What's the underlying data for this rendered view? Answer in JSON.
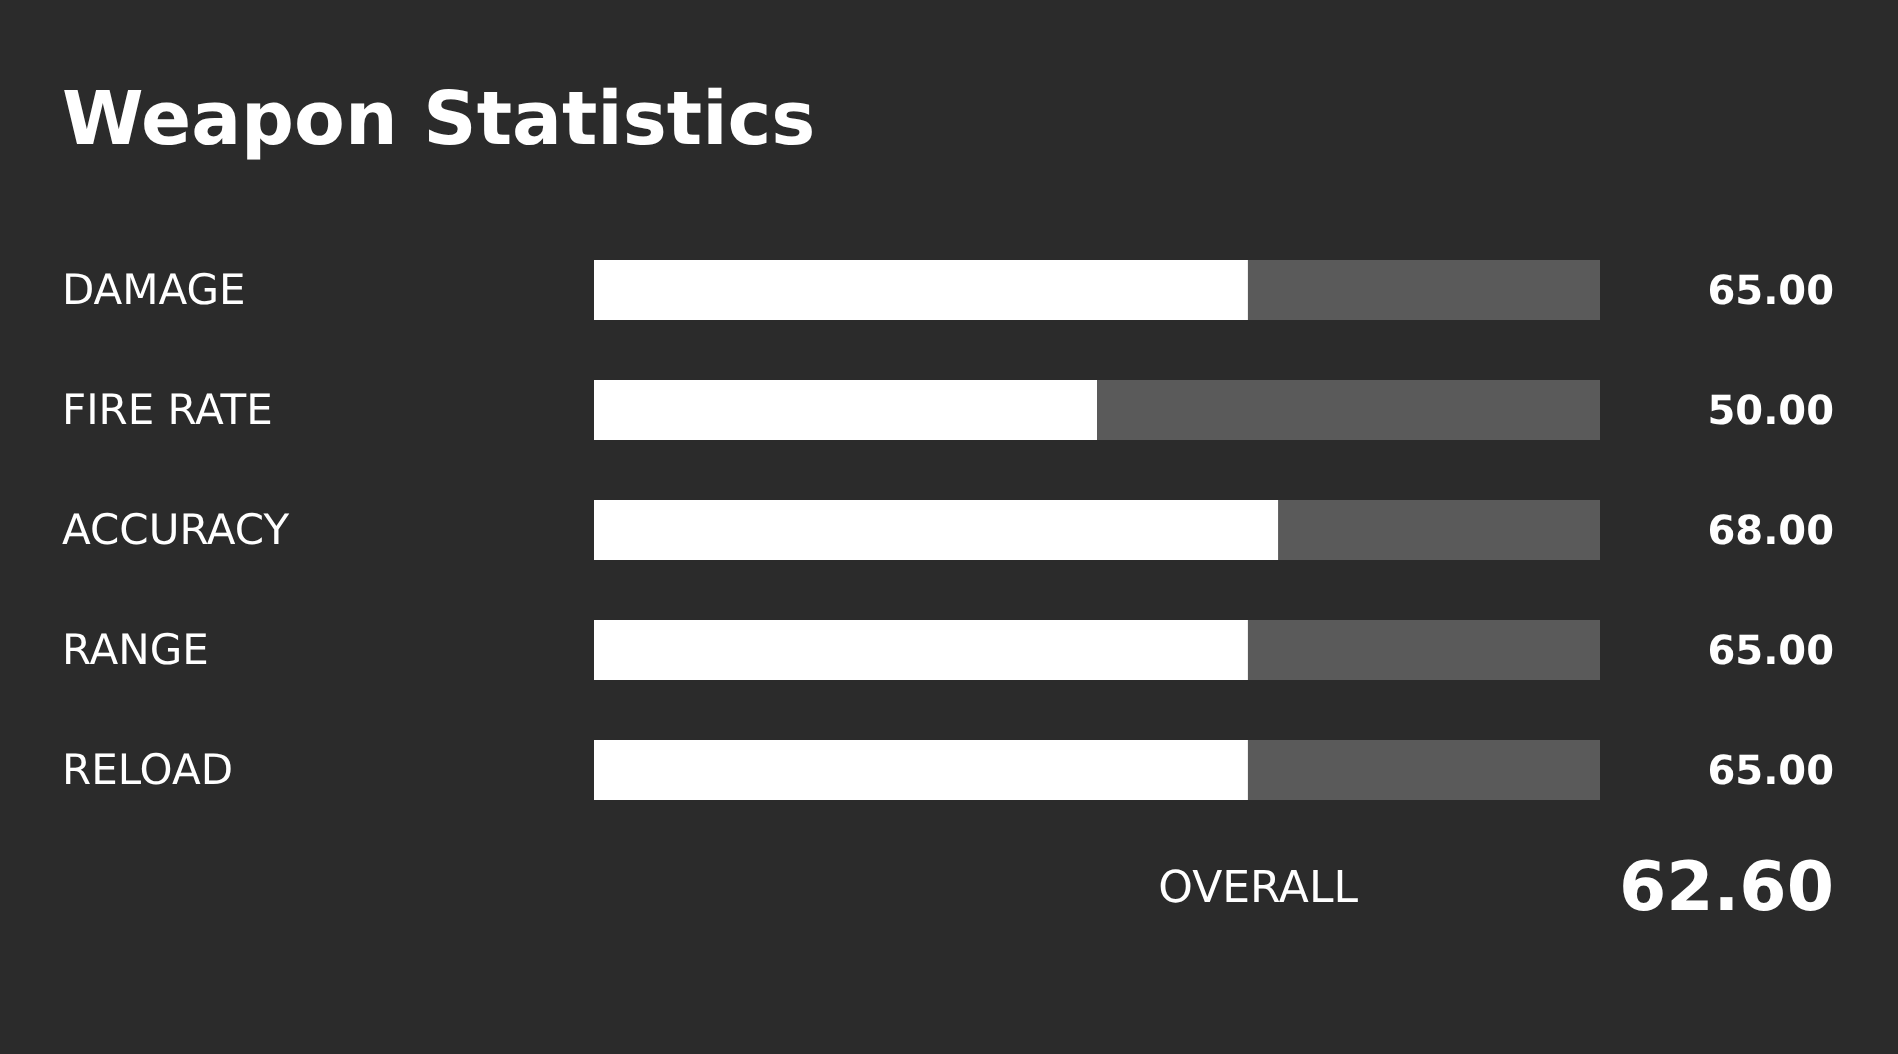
{
  "chart_data": {
    "type": "bar",
    "orientation": "horizontal",
    "title": "Weapon Statistics",
    "categories": [
      "DAMAGE",
      "FIRE RATE",
      "ACCURACY",
      "RANGE",
      "RELOAD"
    ],
    "values": [
      65,
      50,
      68,
      65,
      65
    ],
    "value_labels": [
      "65.00",
      "50.00",
      "68.00",
      "65.00",
      "65.00"
    ],
    "color": "#ffffff",
    "xlim": [
      0,
      100
    ],
    "tick_labels": "y",
    "annotations": [
      "OVERALL",
      "62.60"
    ]
  }
}
